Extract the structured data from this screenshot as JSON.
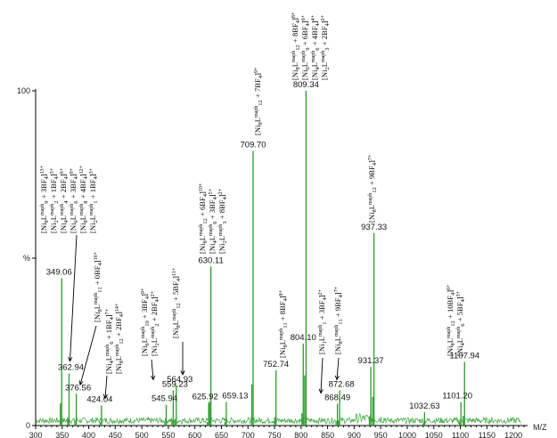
{
  "chart_data": {
    "type": "line",
    "xlabel": "M/Z",
    "ylabel": "%",
    "xlim": [
      300,
      1220
    ],
    "ylim": [
      0,
      100
    ],
    "x_ticks": [
      "300",
      "350",
      "400",
      "450",
      "500",
      "550",
      "600",
      "650",
      "700",
      "750",
      "800",
      "850",
      "900",
      "950",
      "1000",
      "1050",
      "1100",
      "1150",
      "1200"
    ],
    "y_ticks": [
      {
        "value": 0,
        "label": "0"
      },
      {
        "value": 50,
        "label": "%"
      },
      {
        "value": 100,
        "label": "100"
      }
    ],
    "line_color": "#2e9a2e",
    "peaks": [
      {
        "x": 349.06,
        "y": 44,
        "label": "349.06"
      },
      {
        "x": 362.94,
        "y": 15.5,
        "label": "362.94"
      },
      {
        "x": 376.56,
        "y": 9.5,
        "label": "376.56"
      },
      {
        "x": 424.04,
        "y": 6.0,
        "label": "424.04"
      },
      {
        "x": 545.94,
        "y": 6.2,
        "label": "545.94"
      },
      {
        "x": 559.23,
        "y": 10.5,
        "label": "559.23"
      },
      {
        "x": 564.93,
        "y": 12.0,
        "label": "564.93"
      },
      {
        "x": 625.92,
        "y": 6.8,
        "label": "625.92"
      },
      {
        "x": 630.11,
        "y": 47.5,
        "label": "630.11"
      },
      {
        "x": 659.13,
        "y": 7.0,
        "label": "659.13"
      },
      {
        "x": 709.7,
        "y": 82.0,
        "label": "709.70"
      },
      {
        "x": 752.74,
        "y": 16.5,
        "label": "752.74"
      },
      {
        "x": 804.1,
        "y": 24.5,
        "label": "804.10"
      },
      {
        "x": 809.34,
        "y": 100.0,
        "label": "809.34"
      },
      {
        "x": 868.49,
        "y": 6.5,
        "label": "868.49"
      },
      {
        "x": 872.68,
        "y": 10.5,
        "label": "872.68"
      },
      {
        "x": 931.37,
        "y": 17.5,
        "label": "931.37"
      },
      {
        "x": 937.33,
        "y": 57.5,
        "label": "937.33"
      },
      {
        "x": 1032.63,
        "y": 4.0,
        "label": "1032.63"
      },
      {
        "x": 1101.2,
        "y": 7.0,
        "label": "1101.20"
      },
      {
        "x": 1107.94,
        "y": 19.0,
        "label": "1107.94"
      }
    ],
    "annotations": [
      {
        "lines": [
          "[Ni8Lmaph9 + 3BF4]13+",
          "[Ni2Lmaph2 + 1BF4]3+",
          "[Ni4Lmaph4 + 2BF4]6+",
          "[Ni6Lmaph6 + 3BF4]9+",
          "[Ni8Lmaph8 + 4BF4]12+",
          "[Ni2Lmaph1 + 1BF4]3+"
        ]
      },
      {
        "lines": [
          "[Ni8Lmaph11 + 0BF4]16+"
        ]
      },
      {
        "lines": [
          "[Ni4Lmaph6 + 1BF4]7+",
          "[Ni8Lmaph12 + 2BF4]14+"
        ]
      },
      {
        "lines": [
          "[Ni6Lmaph10 + 3BF4]9+",
          "[Ni2Lmaph2 + 2BF4]2+"
        ]
      },
      {
        "lines": [
          "[Ni8Lmaph12 + 5BF4]11+"
        ]
      },
      {
        "lines": [
          "[Ni8Lmaph12 + 6BF4]10+",
          "[Ni4Lmaph6 + 3BF4]5+",
          "[Ni2Lmaph3 + 8BF4]2+"
        ]
      },
      {
        "lines": [
          "[Ni8Lmaph12 + 7BF4]9+"
        ]
      },
      {
        "lines": [
          "[Ni8Lmaph11 + 8BF4]8+"
        ]
      },
      {
        "lines": [
          "[Ni8Lmaph12 + 8BF4]8+",
          "[Ni6Lmaph9 + 6BF4]6+",
          "[Ni4Lmaph6 + 4BF4]4+",
          "[Ni2Lmaph3 + 2BF4]2+"
        ]
      },
      {
        "lines": [
          "[Ni1Lmaph1 + 3BF4]2+"
        ]
      },
      {
        "lines": [
          "[Ni8Lmaph11 + 9BF4]7+"
        ]
      },
      {
        "lines": [
          "[Ni8Lmaph12 + 9BF4]7+"
        ]
      },
      {
        "lines": [
          "[Ni8Lmaph12 + 10BF4]6+",
          "[Ni4Lmaph6 + 5BF4]3+"
        ]
      }
    ]
  }
}
